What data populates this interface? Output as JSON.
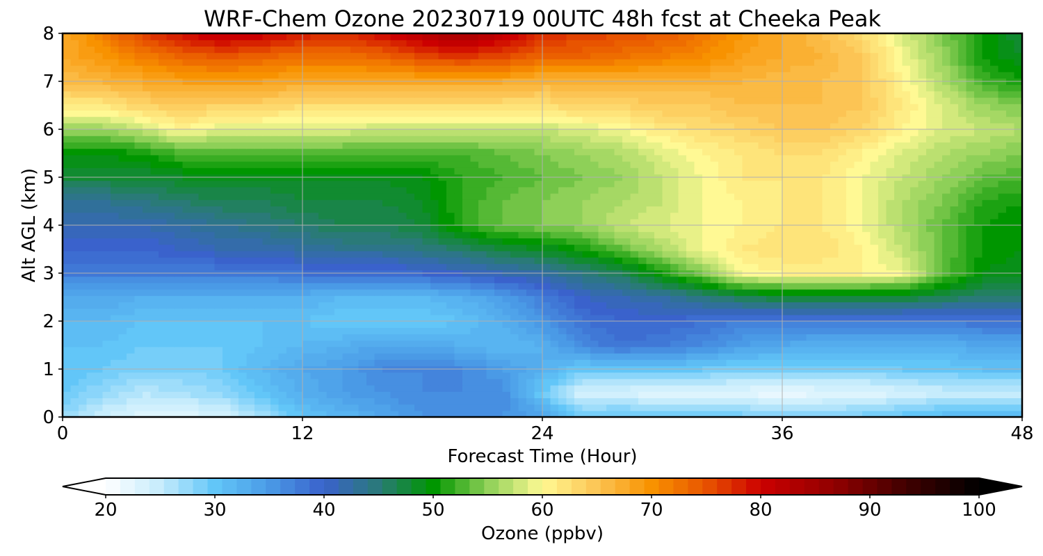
{
  "chart_data": {
    "type": "heatmap",
    "title": "WRF-Chem Ozone  20230719 00UTC 48h fcst at Cheeka Peak",
    "xlabel": "Forecast Time (Hour)",
    "ylabel": "Alt AGL (km)",
    "xlim": [
      0,
      48
    ],
    "ylim": [
      0,
      8
    ],
    "x_ticks": [
      "0",
      "12",
      "24",
      "36",
      "48"
    ],
    "y_ticks": [
      "0",
      "1",
      "2",
      "3",
      "4",
      "5",
      "6",
      "7",
      "8"
    ],
    "grid": true,
    "colorbar": {
      "label": "Ozone  (ppbv)",
      "orientation": "horizontal",
      "range": [
        20,
        100
      ],
      "extend": "both",
      "ticks": [
        "20",
        "30",
        "40",
        "50",
        "60",
        "70",
        "80",
        "90",
        "100"
      ],
      "color_stops": [
        {
          "value": 20,
          "color": "#ffffff"
        },
        {
          "value": 25,
          "color": "#c6ecfc"
        },
        {
          "value": 30,
          "color": "#62c6f8"
        },
        {
          "value": 35,
          "color": "#4a9ae6"
        },
        {
          "value": 40,
          "color": "#3a62cc"
        },
        {
          "value": 45,
          "color": "#2a7a78"
        },
        {
          "value": 50,
          "color": "#009600"
        },
        {
          "value": 55,
          "color": "#8ed058"
        },
        {
          "value": 60,
          "color": "#fff994"
        },
        {
          "value": 65,
          "color": "#fcc454"
        },
        {
          "value": 70,
          "color": "#f89200"
        },
        {
          "value": 75,
          "color": "#e85400"
        },
        {
          "value": 80,
          "color": "#cc0000"
        },
        {
          "value": 87,
          "color": "#8e0000"
        },
        {
          "value": 93,
          "color": "#440000"
        },
        {
          "value": 100,
          "color": "#000000"
        }
      ]
    },
    "x": [
      0,
      2,
      4,
      6,
      8,
      10,
      12,
      14,
      16,
      18,
      20,
      22,
      24,
      26,
      28,
      30,
      32,
      34,
      36,
      38,
      40,
      42,
      44,
      46,
      48
    ],
    "y": [
      0,
      0.5,
      1,
      1.5,
      2,
      2.5,
      3,
      3.5,
      4,
      4.5,
      5,
      5.5,
      6,
      6.5,
      7,
      7.5,
      8
    ],
    "z": [
      [
        28,
        25,
        23,
        23,
        24,
        27,
        31,
        32,
        34,
        36,
        37,
        36,
        35,
        30,
        31,
        30,
        30,
        30,
        29,
        29,
        30,
        31,
        32,
        33,
        33
      ],
      [
        30,
        28,
        26,
        27,
        28,
        31,
        33,
        35,
        36,
        37,
        37,
        37,
        30,
        24,
        24,
        23,
        23,
        23,
        22,
        23,
        23,
        24,
        25,
        25,
        25
      ],
      [
        31,
        30,
        29,
        29,
        30,
        32,
        34,
        35,
        37,
        37,
        37,
        35,
        33,
        30,
        30,
        30,
        30,
        29,
        29,
        29,
        29,
        30,
        30,
        31,
        31
      ],
      [
        31,
        31,
        30,
        30,
        30,
        31,
        32,
        33,
        34,
        34,
        33,
        32,
        33,
        37,
        39,
        38,
        37,
        35,
        34,
        33,
        33,
        33,
        33,
        34,
        34
      ],
      [
        32,
        32,
        31,
        31,
        31,
        31,
        31,
        30,
        30,
        30,
        31,
        33,
        36,
        39,
        40,
        40,
        39,
        38,
        38,
        38,
        38,
        38,
        38,
        39,
        39
      ],
      [
        34,
        34,
        33,
        33,
        33,
        33,
        33,
        32,
        32,
        32,
        33,
        35,
        38,
        41,
        42,
        43,
        45,
        47,
        48,
        48,
        48,
        48,
        47,
        46,
        46
      ],
      [
        38,
        38,
        38,
        38,
        38,
        38,
        39,
        39,
        39,
        40,
        41,
        42,
        43,
        45,
        47,
        51,
        55,
        60,
        61,
        61,
        61,
        60,
        54,
        50,
        49
      ],
      [
        40,
        40,
        40,
        41,
        42,
        42,
        43,
        44,
        44,
        45,
        46,
        48,
        49,
        51,
        54,
        57,
        60,
        62,
        63,
        63,
        61,
        58,
        54,
        51,
        50
      ],
      [
        42,
        42,
        42,
        43,
        44,
        45,
        46,
        47,
        47,
        48,
        52,
        54,
        55,
        56,
        58,
        59,
        60,
        61,
        62,
        62,
        60,
        57,
        54,
        51,
        50
      ],
      [
        44,
        44,
        45,
        46,
        47,
        47,
        48,
        48,
        48,
        49,
        52,
        54,
        55,
        56,
        57,
        58,
        60,
        61,
        62,
        62,
        60,
        57,
        55,
        52,
        51
      ],
      [
        48,
        48,
        48,
        49,
        49,
        49,
        49,
        49,
        49,
        50,
        52,
        53,
        54,
        55,
        56,
        58,
        60,
        62,
        62,
        62,
        60,
        58,
        56,
        54,
        53
      ],
      [
        50,
        50,
        51,
        53,
        53,
        53,
        53,
        53,
        53,
        53,
        53,
        54,
        55,
        56,
        57,
        59,
        61,
        62,
        63,
        63,
        61,
        59,
        57,
        56,
        55
      ],
      [
        56,
        56,
        58,
        61,
        59,
        59,
        59,
        59,
        58,
        58,
        58,
        58,
        58,
        59,
        60,
        62,
        63,
        64,
        65,
        65,
        64,
        61,
        59,
        58,
        57
      ],
      [
        62,
        62,
        64,
        65,
        64,
        64,
        63,
        63,
        63,
        63,
        63,
        63,
        63,
        64,
        64,
        65,
        65,
        66,
        66,
        66,
        65,
        62,
        59,
        56,
        55
      ],
      [
        66,
        67,
        68,
        69,
        69,
        69,
        68,
        68,
        68,
        68,
        68,
        68,
        67,
        67,
        67,
        67,
        67,
        67,
        66,
        66,
        65,
        61,
        57,
        53,
        51
      ],
      [
        68,
        70,
        72,
        74,
        75,
        74,
        73,
        73,
        74,
        76,
        77,
        76,
        74,
        74,
        73,
        72,
        71,
        69,
        68,
        67,
        65,
        60,
        56,
        51,
        49
      ],
      [
        68,
        72,
        77,
        80,
        82,
        81,
        79,
        78,
        80,
        83,
        85,
        82,
        78,
        77,
        76,
        75,
        73,
        70,
        68,
        66,
        63,
        59,
        55,
        51,
        48
      ]
    ]
  }
}
